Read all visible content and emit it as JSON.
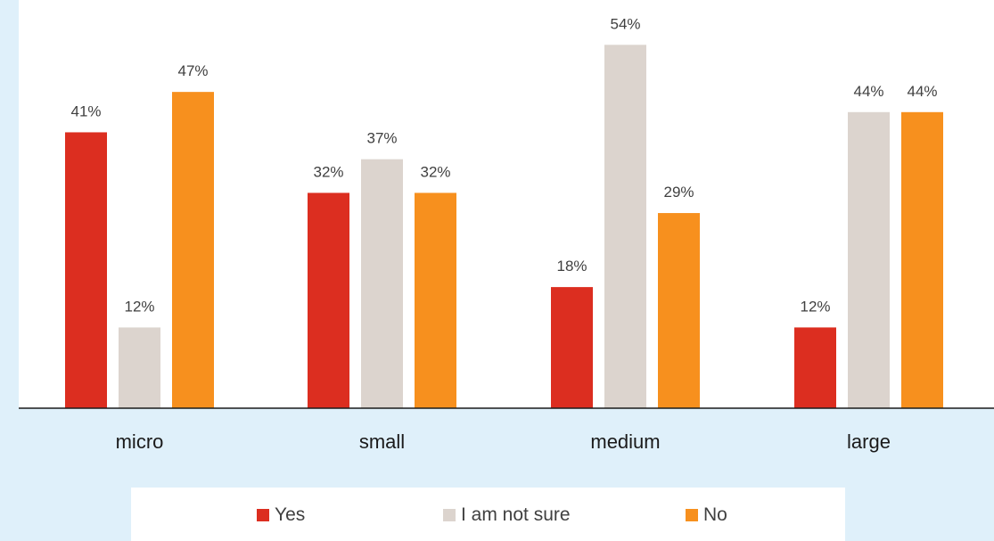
{
  "chart_data": {
    "type": "bar",
    "categories": [
      "micro",
      "small",
      "medium",
      "large"
    ],
    "series": [
      {
        "name": "Yes",
        "values": [
          41,
          32,
          18,
          12
        ],
        "color": "#dc2e20"
      },
      {
        "name": "I am not sure",
        "values": [
          12,
          37,
          54,
          44
        ],
        "color": "#dcd4ce"
      },
      {
        "name": "No",
        "values": [
          47,
          32,
          29,
          44
        ],
        "color": "#f7901e"
      }
    ],
    "value_suffix": "%",
    "title": "",
    "xlabel": "",
    "ylabel": "",
    "ylim": [
      0,
      60
    ],
    "grid": false,
    "legend_position": "bottom"
  },
  "colors": {
    "background": "#dff0fa",
    "plot_background": "#ffffff"
  }
}
